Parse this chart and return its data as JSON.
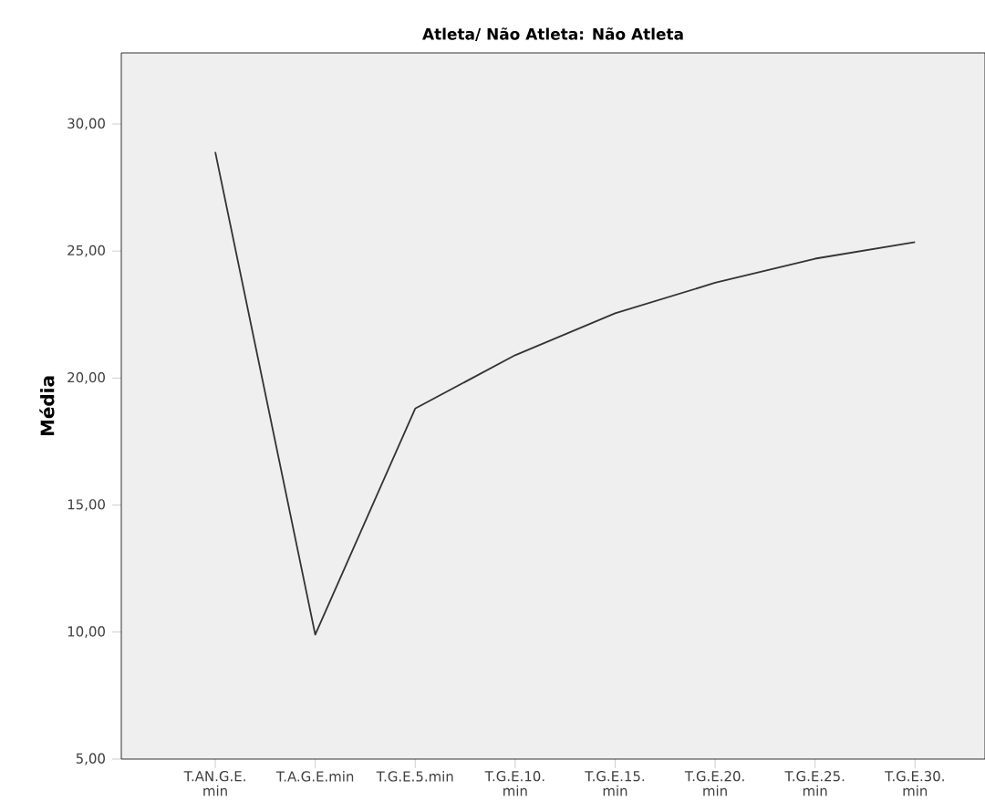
{
  "chart_data": {
    "type": "line",
    "title": "Atleta/ Não Atleta: Não Atleta",
    "ylabel": "Média",
    "categories": [
      "T.AN.G.E. min",
      "T.A.G.E.min",
      "T.G.E.5.min",
      "T.G.E.10. min",
      "T.G.E.15. min",
      "T.G.E.20. min",
      "T.G.E.25. min",
      "T.G.E.30. min"
    ],
    "values": [
      28.9,
      9.9,
      18.8,
      20.9,
      22.55,
      23.75,
      24.7,
      25.35
    ],
    "color": "#333333",
    "ylim": [
      5,
      32.8
    ],
    "yticks": [
      {
        "value": 5,
        "label": "5,00"
      },
      {
        "value": 10,
        "label": "10,00"
      },
      {
        "value": 15,
        "label": "15,00"
      },
      {
        "value": 20,
        "label": "20,00"
      },
      {
        "value": 25,
        "label": "25,00"
      },
      {
        "value": 30,
        "label": "30,00"
      }
    ],
    "grid": false,
    "marker": "none",
    "line_style": "solid"
  }
}
